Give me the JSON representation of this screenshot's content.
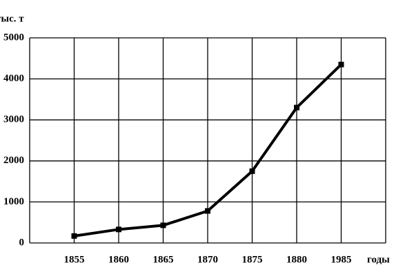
{
  "chart_data": {
    "type": "line",
    "y_label": "тыс. т",
    "x_label": "годы",
    "categories": [
      "1855",
      "1860",
      "1865",
      "1870",
      "1875",
      "1880",
      "1985"
    ],
    "series": [
      {
        "color": "#000000",
        "values": [
          170,
          330,
          430,
          780,
          1750,
          3300,
          4350
        ]
      }
    ],
    "ylim": [
      0,
      5000
    ],
    "yticks": [
      0,
      1000,
      2000,
      3000,
      4000,
      5000
    ],
    "grid": true
  }
}
